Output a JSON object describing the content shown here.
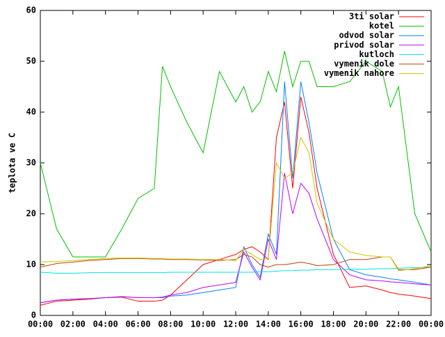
{
  "chart_data": {
    "type": "line",
    "ylabel": "teplota ve C",
    "x": [
      0,
      1,
      2,
      3,
      4,
      5,
      6,
      7,
      7.5,
      8,
      9,
      10,
      11,
      12,
      12.5,
      13,
      13.5,
      14,
      14.5,
      15,
      15.5,
      16,
      16.5,
      17,
      18,
      19,
      20,
      21,
      21.5,
      22,
      23,
      24
    ],
    "xlim": [
      0,
      24
    ],
    "xticks": [
      {
        "value": 0,
        "label": "00:00"
      },
      {
        "value": 2,
        "label": "02:00"
      },
      {
        "value": 4,
        "label": "04:00"
      },
      {
        "value": 6,
        "label": "06:00"
      },
      {
        "value": 8,
        "label": "08:00"
      },
      {
        "value": 10,
        "label": "10:00"
      },
      {
        "value": 12,
        "label": "12:00"
      },
      {
        "value": 14,
        "label": "14:00"
      },
      {
        "value": 16,
        "label": "16:00"
      },
      {
        "value": 18,
        "label": "18:00"
      },
      {
        "value": 20,
        "label": "20:00"
      },
      {
        "value": 22,
        "label": "22:00"
      },
      {
        "value": 24,
        "label": "00:00"
      }
    ],
    "ylim": [
      0,
      60
    ],
    "yticks": [
      0,
      10,
      20,
      30,
      40,
      50,
      60
    ],
    "legend": "top-right",
    "series": [
      {
        "name": "3ti solar",
        "color": "#ff0000",
        "values": [
          2,
          2.8,
          3,
          3.2,
          3.5,
          3.6,
          2.8,
          2.8,
          3,
          4,
          7,
          10,
          11,
          12,
          13,
          13.5,
          12.5,
          11,
          35,
          42,
          25,
          43,
          36,
          25,
          12,
          5.5,
          5.8,
          5,
          4.5,
          4.2,
          3.8,
          3.3
        ]
      },
      {
        "name": "kotel",
        "color": "#00c000",
        "values": [
          30,
          17,
          11.5,
          11.5,
          11.5,
          17,
          23,
          25,
          49,
          45,
          38,
          32,
          48,
          42,
          45,
          40,
          42,
          48,
          44,
          52,
          45,
          50,
          50,
          45,
          45,
          46,
          50,
          48,
          41,
          45,
          20,
          12.5
        ]
      },
      {
        "name": "odvod solar",
        "color": "#0080ff",
        "values": [
          2.5,
          3,
          3.2,
          3.3,
          3.5,
          3.7,
          3.5,
          3.5,
          3.5,
          3.8,
          4,
          4.5,
          5,
          5.5,
          13.5,
          10,
          7.5,
          16,
          12,
          46,
          27,
          46,
          38,
          28,
          15,
          9,
          8,
          7.5,
          7.2,
          7,
          6.5,
          6
        ]
      },
      {
        "name": "privod solar",
        "color": "#c000ff",
        "values": [
          2.5,
          3,
          3.2,
          3.3,
          3.5,
          3.7,
          3.5,
          3.5,
          3.6,
          4,
          4.5,
          5.5,
          6,
          6.5,
          12.5,
          9.5,
          7,
          15,
          11,
          28,
          20,
          26,
          24,
          19,
          11,
          8,
          7,
          6.8,
          6.6,
          6.5,
          6.2,
          6
        ]
      },
      {
        "name": "kutloch",
        "color": "#00e0e0",
        "values": [
          8.5,
          8.3,
          8.3,
          8.4,
          8.4,
          8.4,
          8.4,
          8.4,
          8.4,
          8.5,
          8.5,
          8.5,
          8.5,
          8.5,
          8.5,
          8.5,
          8.6,
          8.6,
          8.7,
          8.8,
          8.8,
          8.9,
          8.9,
          9,
          9,
          9.1,
          9.1,
          9.2,
          9.2,
          9.3,
          9.4,
          9.5
        ]
      },
      {
        "name": "vymenik dole",
        "color": "#c04000",
        "values": [
          9.5,
          10.2,
          10.5,
          10.8,
          11,
          11.2,
          11.2,
          11.1,
          11.1,
          11,
          11,
          10.9,
          10.8,
          11,
          12,
          11.5,
          10,
          9.5,
          10,
          10,
          10.2,
          10.5,
          10.2,
          9.8,
          10,
          11,
          11,
          11.5,
          11.5,
          9,
          9,
          9.5
        ]
      },
      {
        "name": "vymenik nahore",
        "color": "#c8c800",
        "values": [
          10.5,
          10.6,
          10.8,
          11,
          11.2,
          11.3,
          11.3,
          11.2,
          11.2,
          11.1,
          11.1,
          11,
          11,
          10.8,
          13,
          12,
          11,
          11.2,
          30,
          27,
          28,
          35,
          32,
          22,
          15,
          12.5,
          11.8,
          11.5,
          11.5,
          8.8,
          9.2,
          9.8
        ]
      }
    ]
  }
}
